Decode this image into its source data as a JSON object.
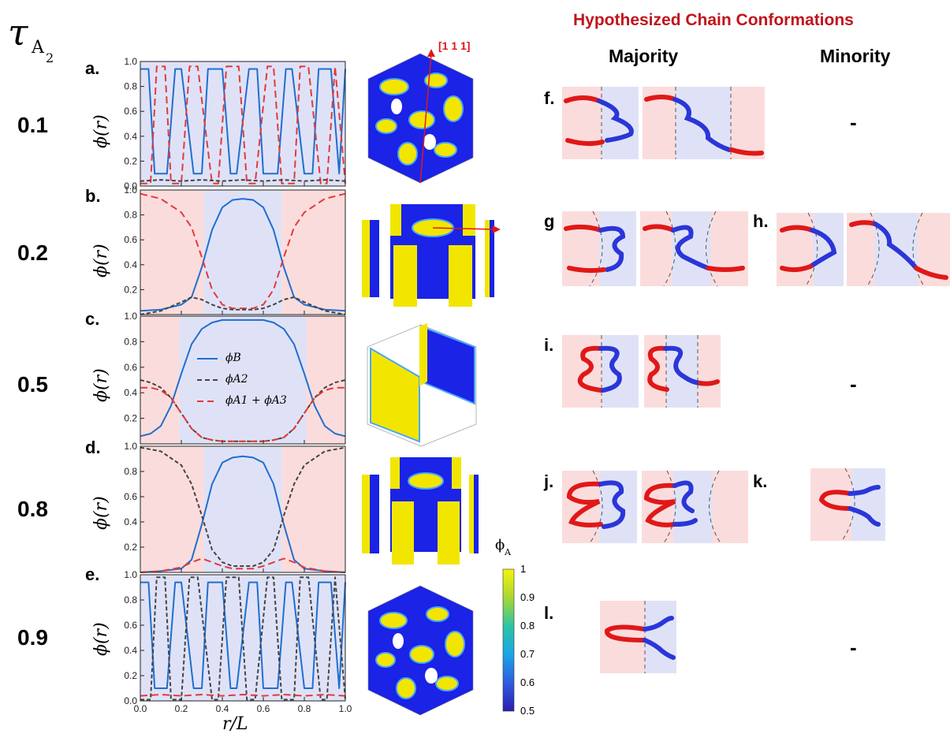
{
  "figure": {
    "tau_symbol": "τ",
    "tau_sub_letter": "A",
    "tau_sub_number": "2",
    "header": "Hypothesized Chain Conformations",
    "col_majority": "Majority",
    "col_minority": "Minority",
    "rows": [
      {
        "tau": "0.1",
        "label": "a.",
        "ylabel": "ϕ(r)"
      },
      {
        "tau": "0.2",
        "label": "b.",
        "ylabel": "ϕ(r)"
      },
      {
        "tau": "0.5",
        "label": "c.",
        "ylabel": "ϕ(r)"
      },
      {
        "tau": "0.8",
        "label": "d.",
        "ylabel": "ϕ(r)"
      },
      {
        "tau": "0.9",
        "label": "e.",
        "ylabel": "ϕ(r)"
      }
    ],
    "conf_labels": [
      "f.",
      "g",
      "h.",
      "i.",
      "j.",
      "k.",
      "l."
    ],
    "minority_dash": "-",
    "direction_label": "[1 1 1]",
    "xlabel": "r/L",
    "colorbar": {
      "title": "ϕ",
      "sub": "A",
      "ticks": [
        "1",
        "0.9",
        "0.8",
        "0.7",
        "0.6",
        "0.5"
      ]
    },
    "legend": [
      {
        "name": "ϕB",
        "color": "#1f6fd0",
        "style": "solid"
      },
      {
        "name": "ϕA2",
        "color": "#444444",
        "style": "dashed"
      },
      {
        "name": "ϕA1 + ϕA3",
        "color": "#e33a3a",
        "style": "dashed"
      }
    ],
    "colors": {
      "blue_region": "#dfe2f7",
      "red_region": "#fbdcdc",
      "blue": "#1f6fd0",
      "red": "#e33a3a",
      "gray": "#444444",
      "chain_red": "#e01818",
      "chain_blue": "#2a36d8"
    }
  },
  "chart_data": [
    {
      "panel": "a.",
      "type": "line",
      "xlabel": "r/L",
      "ylabel": "ϕ(r)",
      "xlim": [
        0,
        1
      ],
      "ylim": [
        0,
        1
      ],
      "ticks_y": [
        "0.0",
        "0.2",
        "0.4",
        "0.6",
        "0.8",
        "1.0"
      ],
      "series": [
        {
          "name": "ϕB",
          "x": [
            0.0,
            0.04,
            0.07,
            0.13,
            0.17,
            0.2,
            0.26,
            0.3,
            0.33,
            0.4,
            0.44,
            0.47,
            0.53,
            0.57,
            0.6,
            0.67,
            0.71,
            0.74,
            0.8,
            0.84,
            0.87,
            0.93,
            0.97,
            1.0
          ],
          "y": [
            0.94,
            0.94,
            0.1,
            0.1,
            0.94,
            0.94,
            0.1,
            0.1,
            0.94,
            0.94,
            0.1,
            0.1,
            0.94,
            0.94,
            0.1,
            0.1,
            0.94,
            0.94,
            0.1,
            0.1,
            0.94,
            0.94,
            0.1,
            0.94
          ]
        },
        {
          "name": "ϕA1 + ϕA3",
          "x": [
            0.0,
            0.05,
            0.08,
            0.12,
            0.15,
            0.2,
            0.24,
            0.28,
            0.35,
            0.38,
            0.42,
            0.48,
            0.52,
            0.56,
            0.62,
            0.65,
            0.69,
            0.75,
            0.78,
            0.82,
            0.88,
            0.91,
            0.95,
            1.0
          ],
          "y": [
            0.02,
            0.02,
            0.96,
            0.96,
            0.02,
            0.02,
            0.96,
            0.96,
            0.02,
            0.02,
            0.96,
            0.96,
            0.02,
            0.02,
            0.96,
            0.96,
            0.02,
            0.02,
            0.96,
            0.96,
            0.02,
            0.02,
            0.96,
            0.02
          ]
        },
        {
          "name": "ϕA2",
          "x": [
            0.0,
            0.1,
            0.2,
            0.3,
            0.4,
            0.5,
            0.6,
            0.7,
            0.8,
            0.9,
            1.0
          ],
          "y": [
            0.04,
            0.05,
            0.04,
            0.05,
            0.04,
            0.05,
            0.04,
            0.05,
            0.04,
            0.05,
            0.04
          ]
        }
      ]
    },
    {
      "panel": "b.",
      "type": "line",
      "xlabel": "r/L",
      "ylabel": "ϕ(r)",
      "xlim": [
        0,
        1
      ],
      "ylim": [
        0,
        1
      ],
      "ticks_y": [
        "0.2",
        "0.4",
        "0.6",
        "0.8",
        "1.0"
      ],
      "series": [
        {
          "name": "ϕB",
          "x": [
            0.0,
            0.1,
            0.2,
            0.25,
            0.3,
            0.35,
            0.4,
            0.45,
            0.5,
            0.55,
            0.6,
            0.65,
            0.7,
            0.75,
            0.8,
            0.9,
            1.0
          ],
          "y": [
            0.03,
            0.04,
            0.08,
            0.14,
            0.38,
            0.68,
            0.86,
            0.92,
            0.93,
            0.92,
            0.86,
            0.68,
            0.38,
            0.14,
            0.08,
            0.04,
            0.03
          ]
        },
        {
          "name": "ϕA1 + ϕA3",
          "x": [
            0.0,
            0.1,
            0.2,
            0.25,
            0.3,
            0.35,
            0.4,
            0.45,
            0.5,
            0.55,
            0.6,
            0.65,
            0.7,
            0.75,
            0.8,
            0.9,
            1.0
          ],
          "y": [
            0.97,
            0.93,
            0.82,
            0.7,
            0.46,
            0.2,
            0.08,
            0.05,
            0.05,
            0.05,
            0.08,
            0.2,
            0.46,
            0.7,
            0.82,
            0.93,
            0.97
          ]
        },
        {
          "name": "ϕA2",
          "x": [
            0.0,
            0.1,
            0.2,
            0.25,
            0.3,
            0.35,
            0.4,
            0.45,
            0.5,
            0.55,
            0.6,
            0.65,
            0.7,
            0.75,
            0.8,
            0.9,
            1.0
          ],
          "y": [
            0.0,
            0.03,
            0.1,
            0.14,
            0.12,
            0.08,
            0.05,
            0.04,
            0.04,
            0.04,
            0.05,
            0.08,
            0.12,
            0.14,
            0.1,
            0.03,
            0.0
          ]
        }
      ]
    },
    {
      "panel": "c.",
      "type": "line",
      "xlabel": "r/L",
      "ylabel": "ϕ(r)",
      "xlim": [
        0,
        1
      ],
      "ylim": [
        0,
        1
      ],
      "ticks_y": [
        "0.2",
        "0.4",
        "0.6",
        "0.8",
        "1.0"
      ],
      "series": [
        {
          "name": "ϕB",
          "x": [
            0.0,
            0.05,
            0.1,
            0.15,
            0.2,
            0.25,
            0.3,
            0.35,
            0.4,
            0.5,
            0.6,
            0.65,
            0.7,
            0.75,
            0.8,
            0.85,
            0.9,
            0.95,
            1.0
          ],
          "y": [
            0.06,
            0.08,
            0.14,
            0.3,
            0.55,
            0.78,
            0.9,
            0.95,
            0.97,
            0.97,
            0.97,
            0.95,
            0.9,
            0.78,
            0.55,
            0.3,
            0.14,
            0.08,
            0.06
          ]
        },
        {
          "name": "ϕA2",
          "x": [
            0.0,
            0.05,
            0.1,
            0.15,
            0.2,
            0.25,
            0.3,
            0.35,
            0.4,
            0.5,
            0.6,
            0.65,
            0.7,
            0.75,
            0.8,
            0.85,
            0.9,
            0.95,
            1.0
          ],
          "y": [
            0.5,
            0.48,
            0.44,
            0.36,
            0.24,
            0.12,
            0.05,
            0.03,
            0.02,
            0.02,
            0.02,
            0.03,
            0.05,
            0.12,
            0.24,
            0.36,
            0.44,
            0.48,
            0.5
          ]
        },
        {
          "name": "ϕA1 + ϕA3",
          "x": [
            0.0,
            0.05,
            0.1,
            0.15,
            0.2,
            0.25,
            0.3,
            0.35,
            0.4,
            0.5,
            0.6,
            0.65,
            0.7,
            0.75,
            0.8,
            0.85,
            0.9,
            0.95,
            1.0
          ],
          "y": [
            0.44,
            0.44,
            0.42,
            0.36,
            0.24,
            0.12,
            0.05,
            0.03,
            0.02,
            0.02,
            0.02,
            0.03,
            0.05,
            0.12,
            0.24,
            0.36,
            0.42,
            0.44,
            0.44
          ]
        }
      ]
    },
    {
      "panel": "d.",
      "type": "line",
      "xlabel": "r/L",
      "ylabel": "ϕ(r)",
      "xlim": [
        0,
        1
      ],
      "ylim": [
        0,
        1
      ],
      "ticks_y": [
        "0.2",
        "0.4",
        "0.6",
        "0.8",
        "1.0"
      ],
      "series": [
        {
          "name": "ϕB",
          "x": [
            0.0,
            0.1,
            0.2,
            0.25,
            0.3,
            0.35,
            0.4,
            0.45,
            0.5,
            0.55,
            0.6,
            0.65,
            0.7,
            0.75,
            0.8,
            0.9,
            1.0
          ],
          "y": [
            0.0,
            0.01,
            0.03,
            0.1,
            0.38,
            0.7,
            0.87,
            0.91,
            0.92,
            0.91,
            0.87,
            0.7,
            0.38,
            0.1,
            0.03,
            0.01,
            0.0
          ]
        },
        {
          "name": "ϕA2",
          "x": [
            0.0,
            0.1,
            0.2,
            0.25,
            0.3,
            0.35,
            0.4,
            0.45,
            0.5,
            0.55,
            0.6,
            0.65,
            0.7,
            0.75,
            0.8,
            0.9,
            1.0
          ],
          "y": [
            0.99,
            0.96,
            0.85,
            0.7,
            0.45,
            0.18,
            0.08,
            0.05,
            0.05,
            0.05,
            0.08,
            0.18,
            0.45,
            0.7,
            0.85,
            0.96,
            0.99
          ]
        },
        {
          "name": "ϕA1 + ϕA3",
          "x": [
            0.0,
            0.1,
            0.2,
            0.25,
            0.3,
            0.35,
            0.4,
            0.45,
            0.5,
            0.55,
            0.6,
            0.65,
            0.7,
            0.75,
            0.8,
            0.9,
            1.0
          ],
          "y": [
            0.0,
            0.01,
            0.04,
            0.08,
            0.11,
            0.08,
            0.05,
            0.03,
            0.03,
            0.03,
            0.05,
            0.08,
            0.11,
            0.08,
            0.04,
            0.01,
            0.0
          ]
        }
      ]
    },
    {
      "panel": "e.",
      "type": "line",
      "xlabel": "r/L",
      "ylabel": "ϕ(r)",
      "xlim": [
        0,
        1
      ],
      "ylim": [
        0,
        1
      ],
      "ticks_x": [
        "0.0",
        "0.2",
        "0.4",
        "0.6",
        "0.8",
        "1.0"
      ],
      "ticks_y": [
        "0.0",
        "0.2",
        "0.4",
        "0.6",
        "0.8",
        "1.0"
      ],
      "series": [
        {
          "name": "ϕB",
          "x": [
            0.0,
            0.04,
            0.07,
            0.13,
            0.17,
            0.2,
            0.26,
            0.3,
            0.33,
            0.4,
            0.44,
            0.47,
            0.53,
            0.57,
            0.6,
            0.67,
            0.71,
            0.74,
            0.8,
            0.84,
            0.87,
            0.93,
            0.97,
            1.0
          ],
          "y": [
            0.94,
            0.94,
            0.1,
            0.1,
            0.94,
            0.94,
            0.1,
            0.1,
            0.94,
            0.94,
            0.1,
            0.1,
            0.94,
            0.94,
            0.1,
            0.1,
            0.94,
            0.94,
            0.1,
            0.1,
            0.94,
            0.94,
            0.1,
            0.94
          ]
        },
        {
          "name": "ϕA2",
          "x": [
            0.0,
            0.05,
            0.08,
            0.12,
            0.15,
            0.2,
            0.24,
            0.28,
            0.35,
            0.38,
            0.42,
            0.48,
            0.52,
            0.56,
            0.62,
            0.65,
            0.69,
            0.75,
            0.78,
            0.82,
            0.88,
            0.91,
            0.95,
            1.0
          ],
          "y": [
            0.01,
            0.01,
            0.98,
            0.98,
            0.01,
            0.01,
            0.98,
            0.98,
            0.01,
            0.01,
            0.98,
            0.98,
            0.01,
            0.01,
            0.98,
            0.98,
            0.01,
            0.01,
            0.98,
            0.98,
            0.01,
            0.01,
            0.98,
            0.01
          ]
        },
        {
          "name": "ϕA1 + ϕA3",
          "x": [
            0.0,
            0.1,
            0.2,
            0.3,
            0.4,
            0.5,
            0.6,
            0.7,
            0.8,
            0.9,
            1.0
          ],
          "y": [
            0.04,
            0.05,
            0.04,
            0.05,
            0.04,
            0.05,
            0.04,
            0.05,
            0.04,
            0.05,
            0.04
          ]
        }
      ]
    }
  ]
}
